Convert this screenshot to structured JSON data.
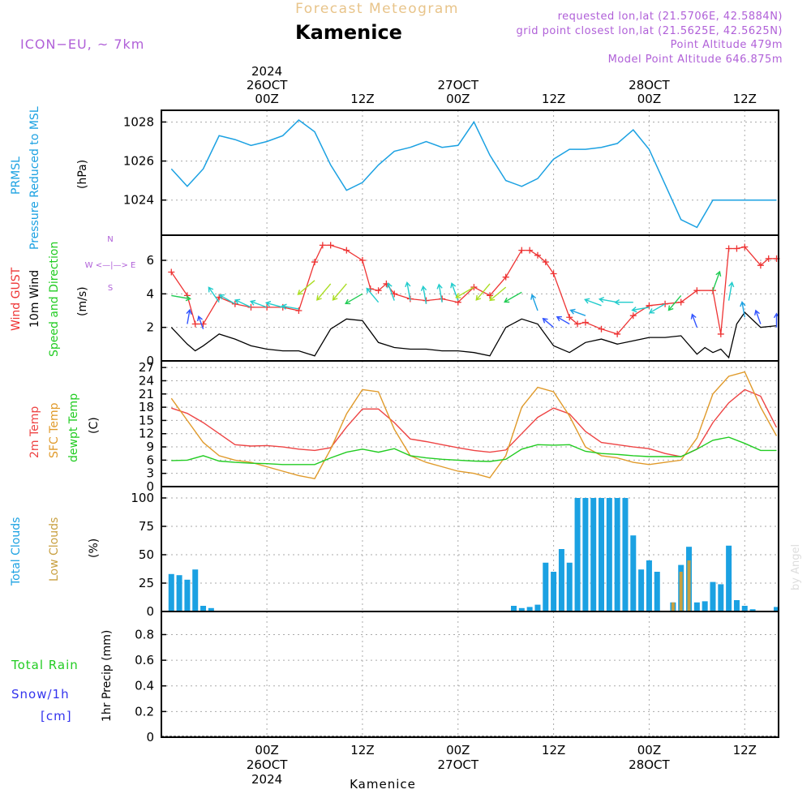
{
  "header": {
    "subtitle": "Forecast Meteogram",
    "location": "Kamenice",
    "model": "ICON−EU,  ~ 7km",
    "requested": "requested lon,lat (21.5706E, 42.5884N)",
    "gridpoint": "grid point closest lon,lat (21.5625E, 42.5625N)",
    "altitude": "Point Altitude 479m",
    "model_altitude": "Model Point Altitude 646.875m",
    "footer_location": "Kamenice",
    "credit": "by Angel"
  },
  "time_axis": {
    "top": [
      {
        "l1": "2024",
        "l2": "26OCT",
        "l3": "00Z",
        "h": 12
      },
      {
        "l1": "",
        "l2": "",
        "l3": "12Z",
        "h": 24
      },
      {
        "l1": "",
        "l2": "27OCT",
        "l3": "00Z",
        "h": 36
      },
      {
        "l1": "",
        "l2": "",
        "l3": "12Z",
        "h": 48
      },
      {
        "l1": "",
        "l2": "28OCT",
        "l3": "00Z",
        "h": 60
      },
      {
        "l1": "",
        "l2": "",
        "l3": "12Z",
        "h": 72
      }
    ],
    "bottom": [
      {
        "l1": "00Z",
        "l2": "26OCT",
        "l3": "2024",
        "h": 12
      },
      {
        "l1": "12Z",
        "l2": "",
        "l3": "",
        "h": 24
      },
      {
        "l1": "00Z",
        "l2": "27OCT",
        "l3": "",
        "h": 36
      },
      {
        "l1": "12Z",
        "l2": "",
        "l3": "",
        "h": 48
      },
      {
        "l1": "00Z",
        "l2": "28OCT",
        "l3": "",
        "h": 60
      },
      {
        "l1": "12Z",
        "l2": "",
        "l3": "",
        "h": 72
      }
    ]
  },
  "labels": {
    "prmsl": "PRMSL",
    "prmsl_long": "Pressure Reduced to MSL",
    "hpa": "(hPa)",
    "gust": "Wind GUST",
    "wind10": "10m Wind",
    "speed_dir": "Speed and Direction",
    "ms": "(m/s)",
    "compass_n": "N",
    "compass_s": "S",
    "compass_we": "W <—|—> E",
    "temp2m": "2m Temp",
    "sfctemp": "SFC Temp",
    "dewpt": "dewpt Temp",
    "c_unit": "(C)",
    "total_clouds": "Total Clouds",
    "low_clouds": "Low Clouds",
    "pct": "(%)",
    "total_rain": "Total  Rain",
    "snow": "Snow/1h",
    "cm": "[cm]",
    "precip": "1hr Precip (mm)"
  },
  "colors": {
    "pressure": "#1ba1e2",
    "gust": "#ee3333",
    "wind10": "#000000",
    "temp2m": "#ee4444",
    "sfctemp": "#e09a2a",
    "dewpt": "#22cc22",
    "total_clouds": "#1ba1e2",
    "low_clouds": "#c8a040",
    "rain": "#22cc22",
    "snow": "#3333ee",
    "title": "#e8c48a",
    "meta": "#b060d8"
  },
  "chart_data": [
    {
      "type": "line",
      "panel": "pressure",
      "x_unit": "forecast hour",
      "x": [
        0,
        2,
        4,
        6,
        8,
        10,
        12,
        14,
        16,
        18,
        20,
        22,
        24,
        26,
        28,
        30,
        32,
        34,
        36,
        38,
        40,
        42,
        44,
        46,
        48,
        50,
        52,
        54,
        56,
        58,
        60,
        62,
        64,
        66,
        68,
        70,
        72,
        74,
        76
      ],
      "y": [
        1025.6,
        1024.7,
        1025.6,
        1027.3,
        1027.1,
        1026.8,
        1027.0,
        1027.3,
        1028.1,
        1027.5,
        1025.8,
        1024.5,
        1024.9,
        1025.8,
        1026.5,
        1026.7,
        1027.0,
        1026.7,
        1026.8,
        1028.0,
        1026.3,
        1025.0,
        1024.7,
        1025.1,
        1026.1,
        1026.6,
        1026.6,
        1026.7,
        1026.9,
        1027.6,
        1026.6,
        1024.8,
        1023.0,
        1022.6,
        1024.0,
        1024.0,
        1024.0,
        1024.0,
        1024.0
      ],
      "ylim": [
        1022.2,
        1028.6
      ],
      "yticks": [
        1024,
        1026,
        1028
      ]
    },
    {
      "type": "line",
      "panel": "wind",
      "x_unit": "forecast hour",
      "series": [
        {
          "name": "Wind GUST",
          "x": [
            0,
            2,
            3,
            4,
            6,
            8,
            10,
            12,
            14,
            16,
            18,
            19,
            20,
            22,
            24,
            25,
            26,
            27,
            28,
            30,
            32,
            34,
            36,
            38,
            40,
            42,
            44,
            45,
            46,
            47,
            48,
            50,
            51,
            52,
            54,
            56,
            58,
            60,
            62,
            64,
            66,
            68,
            69,
            70,
            71,
            72,
            74,
            75,
            76
          ],
          "y": [
            5.3,
            3.9,
            2.2,
            2.2,
            3.8,
            3.4,
            3.2,
            3.2,
            3.2,
            3.0,
            5.9,
            6.9,
            6.9,
            6.6,
            6.0,
            4.3,
            4.2,
            4.6,
            4.0,
            3.7,
            3.6,
            3.7,
            3.5,
            4.4,
            3.9,
            5.0,
            6.6,
            6.6,
            6.3,
            5.9,
            5.2,
            2.6,
            2.2,
            2.3,
            1.9,
            1.6,
            2.7,
            3.3,
            3.4,
            3.5,
            4.2,
            4.2,
            1.6,
            6.7,
            6.7,
            6.8,
            5.7,
            6.1,
            6.1
          ]
        },
        {
          "name": "10m Wind",
          "x": [
            0,
            2,
            3,
            4,
            6,
            8,
            10,
            12,
            14,
            16,
            18,
            20,
            22,
            24,
            26,
            28,
            30,
            32,
            34,
            36,
            38,
            40,
            42,
            44,
            46,
            48,
            50,
            52,
            54,
            56,
            58,
            60,
            62,
            64,
            66,
            67,
            68,
            69,
            70,
            71,
            72,
            74,
            76
          ],
          "y": [
            2.0,
            1.0,
            0.6,
            0.9,
            1.6,
            1.3,
            0.9,
            0.7,
            0.6,
            0.6,
            0.3,
            1.9,
            2.5,
            2.4,
            1.1,
            0.8,
            0.7,
            0.7,
            0.6,
            0.6,
            0.5,
            0.3,
            2.0,
            2.5,
            2.2,
            0.9,
            0.5,
            1.1,
            1.3,
            1.0,
            1.2,
            1.4,
            1.4,
            1.5,
            0.4,
            0.8,
            0.5,
            0.7,
            0.2,
            2.2,
            2.9,
            2.0,
            2.1
          ]
        }
      ],
      "ylim": [
        0,
        7.5
      ],
      "yticks": [
        0,
        2,
        4,
        6
      ]
    },
    {
      "type": "line",
      "panel": "temperature",
      "x_unit": "forecast hour",
      "series": [
        {
          "name": "2m Temp",
          "x": [
            0,
            2,
            4,
            6,
            8,
            10,
            12,
            14,
            16,
            18,
            20,
            22,
            24,
            26,
            28,
            30,
            32,
            34,
            36,
            38,
            40,
            42,
            44,
            46,
            48,
            50,
            52,
            54,
            56,
            58,
            60,
            62,
            64,
            66,
            68,
            70,
            72,
            74,
            76
          ],
          "y": [
            17.8,
            16.6,
            14.5,
            12.0,
            9.5,
            9.2,
            9.3,
            9.0,
            8.5,
            8.2,
            8.8,
            13.5,
            17.6,
            17.6,
            14.5,
            10.8,
            10.2,
            9.5,
            8.8,
            8.2,
            7.8,
            8.3,
            12.0,
            15.7,
            17.8,
            16.5,
            12.5,
            10.0,
            9.5,
            9.0,
            8.6,
            7.5,
            6.8,
            8.5,
            14.5,
            19.0,
            22.0,
            20.5,
            13.4
          ]
        },
        {
          "name": "SFC Temp",
          "x": [
            0,
            2,
            4,
            6,
            8,
            10,
            12,
            14,
            16,
            18,
            20,
            22,
            24,
            26,
            28,
            30,
            32,
            34,
            36,
            38,
            40,
            42,
            44,
            46,
            48,
            50,
            52,
            54,
            56,
            58,
            60,
            62,
            64,
            66,
            68,
            70,
            72,
            74,
            76
          ],
          "y": [
            20.0,
            15.0,
            10.0,
            7.0,
            6.0,
            5.5,
            4.5,
            3.5,
            2.5,
            1.8,
            8.5,
            16.5,
            22.0,
            21.5,
            13.0,
            7.0,
            5.5,
            4.5,
            3.5,
            3.0,
            2.0,
            7.0,
            18.0,
            22.5,
            21.5,
            16.0,
            9.0,
            7.0,
            6.5,
            5.5,
            5.0,
            5.5,
            6.0,
            11.0,
            21.0,
            25.0,
            26.0,
            18.0,
            11.5
          ]
        },
        {
          "name": "dewpt Temp",
          "x": [
            0,
            2,
            4,
            6,
            8,
            10,
            12,
            14,
            16,
            18,
            20,
            22,
            24,
            26,
            28,
            30,
            32,
            34,
            36,
            38,
            40,
            42,
            44,
            46,
            48,
            50,
            52,
            54,
            56,
            58,
            60,
            62,
            64,
            66,
            68,
            70,
            72,
            74,
            76
          ],
          "y": [
            5.9,
            6.0,
            7.0,
            5.8,
            5.5,
            5.3,
            5.2,
            5.0,
            5.0,
            5.0,
            6.5,
            7.8,
            8.5,
            7.8,
            8.6,
            7.0,
            6.5,
            6.2,
            6.0,
            5.8,
            5.7,
            6.2,
            8.5,
            9.5,
            9.4,
            9.5,
            8.0,
            7.5,
            7.3,
            7.0,
            6.8,
            6.8,
            6.8,
            8.5,
            10.5,
            11.2,
            9.8,
            8.2,
            8.2
          ]
        }
      ],
      "ylim": [
        0,
        28.5
      ],
      "yticks": [
        0,
        3,
        6,
        9,
        12,
        15,
        18,
        21,
        24,
        27
      ]
    },
    {
      "type": "bar",
      "panel": "clouds",
      "x_unit": "forecast hour",
      "series": [
        {
          "name": "Total Clouds",
          "x": [
            0,
            1,
            2,
            3,
            4,
            5,
            43,
            44,
            45,
            46,
            47,
            48,
            49,
            50,
            51,
            52,
            53,
            54,
            55,
            56,
            57,
            58,
            59,
            60,
            61,
            62,
            63,
            64,
            65,
            66,
            67,
            68,
            69,
            70,
            71,
            72,
            73,
            74,
            75,
            76
          ],
          "values": [
            33,
            32,
            28,
            37,
            5,
            3,
            5,
            3,
            4,
            6,
            43,
            35,
            55,
            43,
            100,
            100,
            100,
            100,
            100,
            100,
            100,
            67,
            37,
            45,
            35,
            0,
            8,
            41,
            57,
            8,
            9,
            26,
            24,
            58,
            10,
            5,
            2,
            0,
            0,
            4
          ]
        },
        {
          "name": "Low Clouds",
          "x": [
            63,
            64,
            65
          ],
          "values": [
            8,
            35,
            45
          ]
        }
      ],
      "ylim": [
        0,
        110
      ],
      "yticks": [
        0,
        25,
        50,
        75,
        100
      ]
    },
    {
      "type": "bar",
      "panel": "precipitation",
      "x_unit": "forecast hour",
      "series": [
        {
          "name": "Total Rain",
          "x": [],
          "values": []
        },
        {
          "name": "Snow/1h",
          "x": [],
          "values": []
        }
      ],
      "ylim": [
        0,
        0.98
      ],
      "yticks": [
        0,
        0.2,
        0.4,
        0.6,
        0.8
      ]
    }
  ],
  "wind_barbs": {
    "x": [
      0,
      2,
      4,
      6,
      8,
      10,
      12,
      14,
      16,
      18,
      20,
      22,
      24,
      26,
      28,
      30,
      32,
      34,
      36,
      38,
      40,
      42,
      44,
      46,
      48,
      50,
      52,
      54,
      56,
      58,
      60,
      62,
      64,
      66,
      68,
      70,
      72,
      74,
      76
    ],
    "speed": [
      3.9,
      2.2,
      1.9,
      3.5,
      3.4,
      3.2,
      3.2,
      3.2,
      3.1,
      4.8,
      4.6,
      4.6,
      4.0,
      3.5,
      3.6,
      3.6,
      3.4,
      3.5,
      3.6,
      4.4,
      4.6,
      4.4,
      4.1,
      3.0,
      2.0,
      2.2,
      2.7,
      3.3,
      3.5,
      3.5,
      3.2,
      3.4,
      3.9,
      2.0,
      4.2,
      3.6,
      2.6,
      2.2,
      2.0
    ],
    "dir_deg": [
      80,
      170,
      200,
      215,
      240,
      245,
      250,
      255,
      260,
      310,
      320,
      320,
      300,
      220,
      200,
      190,
      190,
      190,
      200,
      300,
      320,
      310,
      300,
      200,
      230,
      240,
      250,
      250,
      260,
      270,
      280,
      300,
      320,
      200,
      160,
      170,
      190,
      200,
      180
    ]
  }
}
